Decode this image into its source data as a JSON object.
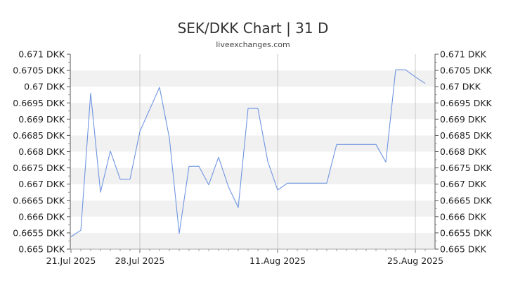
{
  "chart_data": {
    "type": "line",
    "title": "SEK/DKK Chart | 31 D",
    "subtitle": "liveexchanges.com",
    "y_ticks": [
      "0.665 DKK",
      "0.6655 DKK",
      "0.666 DKK",
      "0.6665 DKK",
      "0.667 DKK",
      "0.6675 DKK",
      "0.668 DKK",
      "0.6685 DKK",
      "0.669 DKK",
      "0.6695 DKK",
      "0.67 DKK",
      "0.6705 DKK",
      "0.671 DKK"
    ],
    "y_tick_values": [
      0.665,
      0.6655,
      0.666,
      0.6665,
      0.667,
      0.6675,
      0.668,
      0.6685,
      0.669,
      0.6695,
      0.67,
      0.6705,
      0.671
    ],
    "ylim": [
      0.665,
      0.671
    ],
    "x_ticks": [
      {
        "label": "21.Jul 2025",
        "date": "2025-07-21"
      },
      {
        "label": "28.Jul 2025",
        "date": "2025-07-28"
      },
      {
        "label": "11.Aug 2025",
        "date": "2025-08-11"
      },
      {
        "label": "25.Aug 2025",
        "date": "2025-08-25"
      }
    ],
    "xlim": [
      "2025-07-21",
      "2025-08-26"
    ],
    "line_color": "#6f95e0",
    "series": [
      {
        "x": [
          "2025-07-21",
          "2025-07-22",
          "2025-07-23",
          "2025-07-24",
          "2025-07-25",
          "2025-07-26",
          "2025-07-27",
          "2025-07-28",
          "2025-07-30",
          "2025-07-31",
          "2025-08-01",
          "2025-08-02",
          "2025-08-03",
          "2025-08-04",
          "2025-08-05",
          "2025-08-06",
          "2025-08-07",
          "2025-08-08",
          "2025-08-09",
          "2025-08-10",
          "2025-08-11",
          "2025-08-12",
          "2025-08-16",
          "2025-08-17",
          "2025-08-18",
          "2025-08-21",
          "2025-08-22",
          "2025-08-23",
          "2025-08-24",
          "2025-08-25",
          "2025-08-26"
        ],
        "values": [
          0.66538,
          0.66558,
          0.6698,
          0.66675,
          0.66802,
          0.66715,
          0.66715,
          0.66862,
          0.66998,
          0.66842,
          0.66548,
          0.66755,
          0.66755,
          0.66698,
          0.66783,
          0.66692,
          0.66628,
          0.66933,
          0.66933,
          0.6677,
          0.66682,
          0.66703,
          0.66703,
          0.66822,
          0.66822,
          0.66822,
          0.66768,
          0.67052,
          0.67052,
          0.6703,
          0.6701
        ]
      }
    ]
  }
}
